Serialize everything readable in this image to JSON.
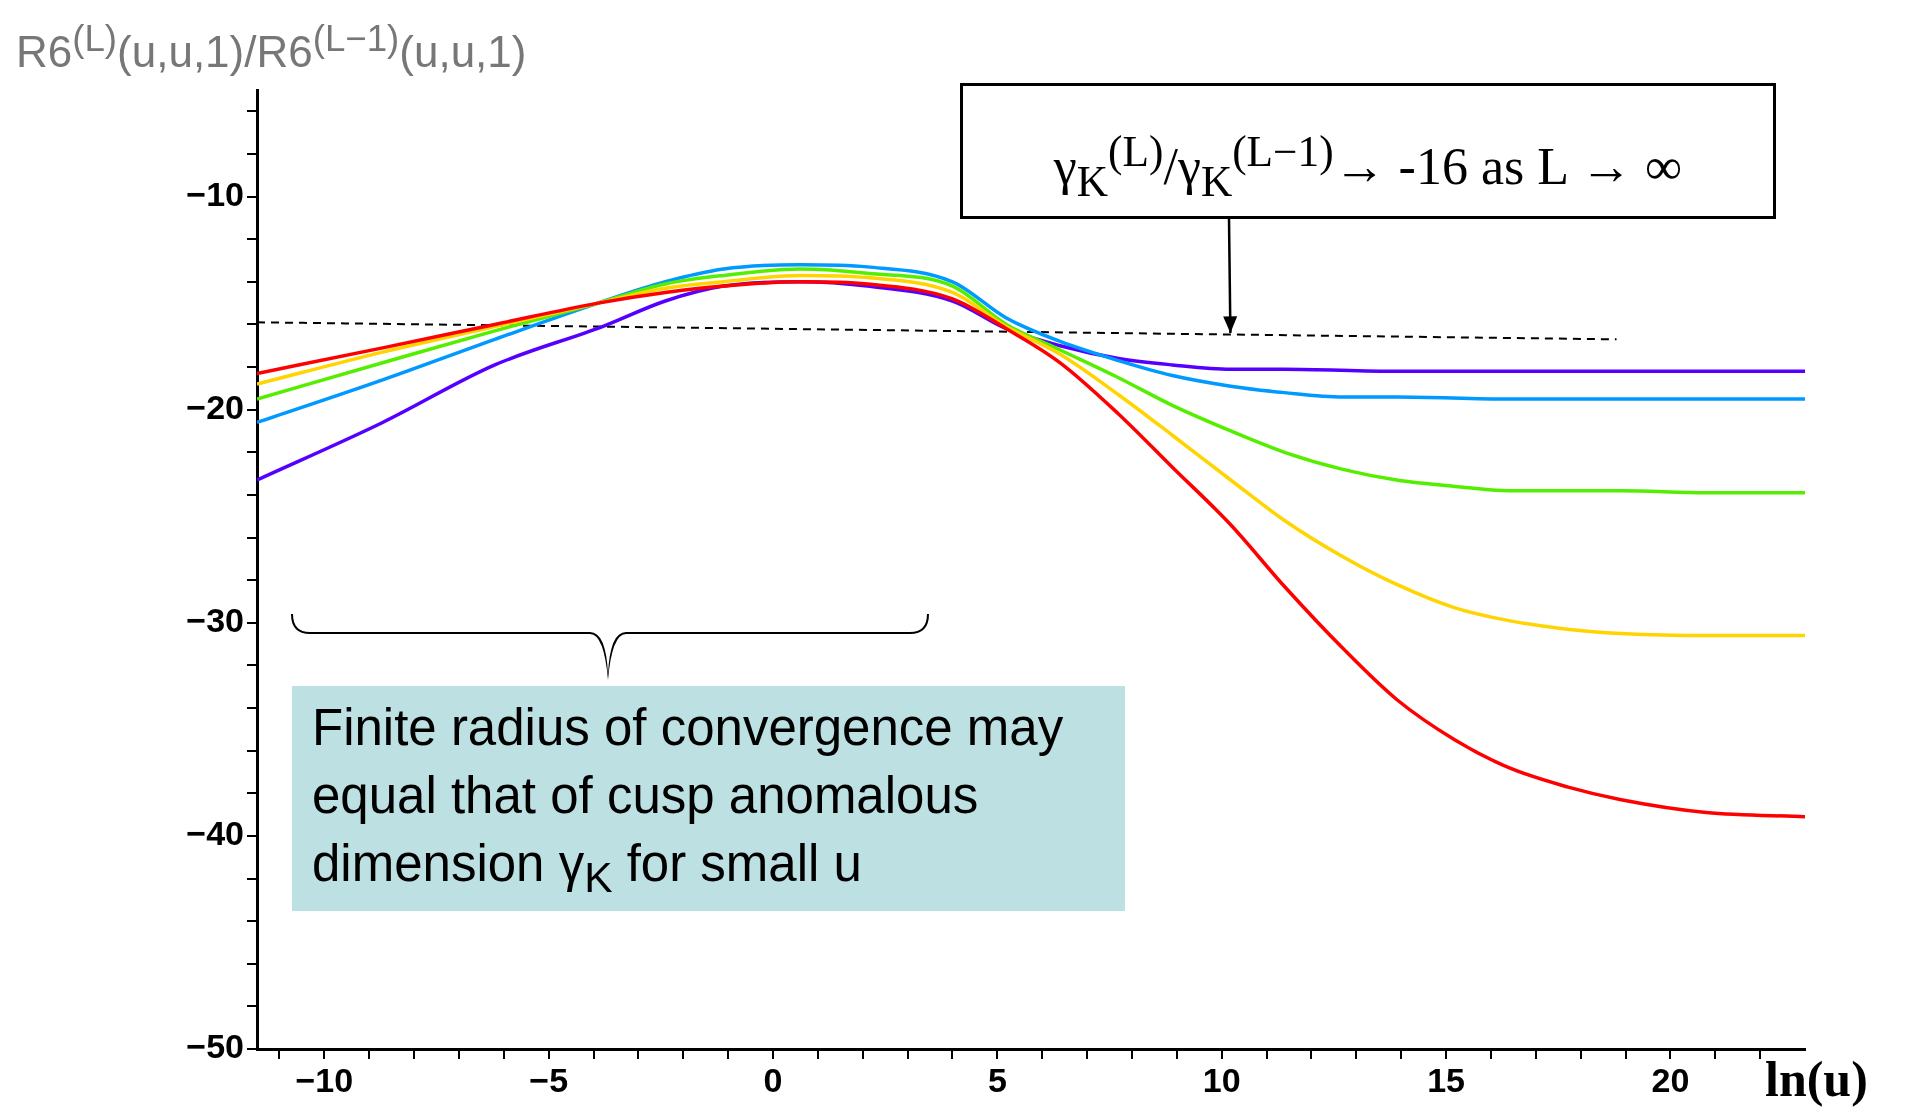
{
  "chart_data": {
    "type": "line",
    "ylabel": "R6$^{(L)}$(u,u,1)/R6$^{(L−1)}$(u,u,1)",
    "xlabel": "ln(u)",
    "annotations": [
      {
        "text": "γ$_{K}$$^{(L)}$/γ$_{K}$$^{(L−1)}$→ -16  as  L → ∞",
        "x": 10.2,
        "y": -16.4
      },
      "Finite radius of convergence may equal that of cusp anomalous dimension γ$_{K}$ for small u"
    ],
    "xlim": [
      -11.5,
      23
    ],
    "ylim": [
      -50,
      -5
    ],
    "xticks": [
      {
        "value": -11,
        "label": null
      },
      -10,
      {
        "value": -9,
        "label": null
      },
      {
        "value": -8,
        "label": null
      },
      {
        "value": -7,
        "label": null
      },
      {
        "value": -6,
        "label": null
      },
      -5,
      {
        "value": -4,
        "label": null
      },
      {
        "value": -3,
        "label": null
      },
      {
        "value": -2,
        "label": null
      },
      {
        "value": -1,
        "label": null
      },
      0,
      {
        "value": 1,
        "label": null
      },
      {
        "value": 2,
        "label": null
      },
      {
        "value": 3,
        "label": null
      },
      {
        "value": 4,
        "label": null
      },
      5,
      {
        "value": 6,
        "label": null
      },
      {
        "value": 7,
        "label": null
      },
      {
        "value": 8,
        "label": null
      },
      {
        "value": 9,
        "label": null
      },
      10,
      {
        "value": 11,
        "label": null
      },
      {
        "value": 12,
        "label": null
      },
      {
        "value": 13,
        "label": null
      },
      {
        "value": 14,
        "label": null
      },
      15,
      {
        "value": 16,
        "label": null
      },
      {
        "value": 17,
        "label": null
      },
      {
        "value": 18,
        "label": null
      },
      {
        "value": 19,
        "label": null
      },
      20,
      {
        "value": 21,
        "label": null
      },
      {
        "value": 22,
        "label": null
      }
    ],
    "yticks": [
      -50,
      {
        "value": -48,
        "label": null
      },
      {
        "value": -46,
        "label": null
      },
      {
        "value": -44,
        "label": null
      },
      {
        "value": -42,
        "label": null
      },
      -40,
      {
        "value": -38,
        "label": null
      },
      {
        "value": -36,
        "label": null
      },
      {
        "value": -34,
        "label": null
      },
      {
        "value": -32,
        "label": null
      },
      -30,
      {
        "value": -28,
        "label": null
      },
      {
        "value": -26,
        "label": null
      },
      {
        "value": -24,
        "label": null
      },
      {
        "value": -22,
        "label": null
      },
      -20,
      {
        "value": -18,
        "label": null
      },
      {
        "value": -16,
        "label": null
      },
      {
        "value": -14,
        "label": null
      },
      {
        "value": -12,
        "label": null
      },
      -10,
      {
        "value": -8,
        "label": null
      },
      {
        "value": -6,
        "label": null
      }
    ],
    "series": [
      {
        "color": "#ff0000",
        "x": [
          -11.5,
          -8.7,
          -6.2,
          -3.9,
          -2.4,
          -1.1,
          0.6,
          2.1,
          4,
          5.2,
          6.4,
          7.7,
          8.9,
          10.2,
          11.4,
          12.7,
          13.9,
          15.2,
          16.4,
          17.7,
          18.9,
          20.8,
          23
        ],
        "values": [
          -18.3,
          -17.1,
          -16.0,
          -15.0,
          -14.5,
          -14.2,
          -14.0,
          -14.1,
          -14.8,
          -16.2,
          -17.8,
          -20.2,
          -22.7,
          -25.4,
          -28.3,
          -31.2,
          -33.6,
          -35.5,
          -36.8,
          -37.7,
          -38.3,
          -38.9,
          -39.1
        ]
      },
      {
        "color": "#ffd400",
        "x": [
          -11.5,
          -8.7,
          -6.2,
          -3.9,
          -2.4,
          -1.1,
          0.6,
          2.1,
          4,
          5.2,
          6.4,
          7.7,
          8.9,
          10.2,
          11.4,
          12.7,
          13.9,
          15.2,
          16.4,
          17.7,
          18.9,
          20.8,
          23
        ],
        "values": [
          -18.8,
          -17.3,
          -16.1,
          -15.0,
          -14.3,
          -14.0,
          -13.7,
          -13.8,
          -14.5,
          -16.1,
          -17.4,
          -19.3,
          -21.2,
          -23.3,
          -25.2,
          -26.9,
          -28.2,
          -29.3,
          -29.9,
          -30.3,
          -30.5,
          -30.6,
          -30.6
        ]
      },
      {
        "color": "#55ee00",
        "x": [
          -11.5,
          -8.7,
          -6.2,
          -3.9,
          -2.4,
          -1.1,
          0.6,
          2.1,
          4,
          5.2,
          6.4,
          7.7,
          8.9,
          10.2,
          11.4,
          12.7,
          13.9,
          15.2,
          16.4,
          17.7,
          18.9,
          20.8,
          23
        ],
        "values": [
          -19.5,
          -17.8,
          -16.3,
          -15.0,
          -14.1,
          -13.7,
          -13.4,
          -13.6,
          -14.2,
          -16.0,
          -17.2,
          -18.5,
          -19.8,
          -21.0,
          -22.0,
          -22.8,
          -23.3,
          -23.6,
          -23.8,
          -23.8,
          -23.8,
          -23.9,
          -23.9
        ]
      },
      {
        "color": "#0099ff",
        "x": [
          -11.5,
          -8.7,
          -6.2,
          -3.9,
          -2.4,
          -1.1,
          0.6,
          2.1,
          4,
          5.2,
          6.4,
          7.7,
          8.9,
          10.2,
          11.4,
          12.7,
          13.9,
          16.4,
          23
        ],
        "values": [
          -20.6,
          -18.6,
          -16.7,
          -15.0,
          -14.0,
          -13.4,
          -13.2,
          -13.3,
          -14.0,
          -15.7,
          -16.8,
          -17.7,
          -18.4,
          -18.9,
          -19.2,
          -19.4,
          -19.4,
          -19.5,
          -19.5
        ]
      },
      {
        "color": "#5500ff",
        "x": [
          -11.5,
          -8.7,
          -6.2,
          -3.8,
          -2.4,
          -1.1,
          0.6,
          2.1,
          4,
          5.2,
          6.4,
          7.7,
          8.9,
          10.2,
          11.4,
          13.9,
          23
        ],
        "values": [
          -23.3,
          -20.6,
          -17.9,
          -16.1,
          -14.9,
          -14.2,
          -14.0,
          -14.2,
          -14.9,
          -16.2,
          -17.0,
          -17.6,
          -17.9,
          -18.1,
          -18.1,
          -18.2,
          -18.2
        ]
      },
      {
        "color": "#000000",
        "line_style": "dashed",
        "x": [
          -11.5,
          18.8
        ],
        "values": [
          -15.9,
          -16.7
        ]
      }
    ]
  }
}
